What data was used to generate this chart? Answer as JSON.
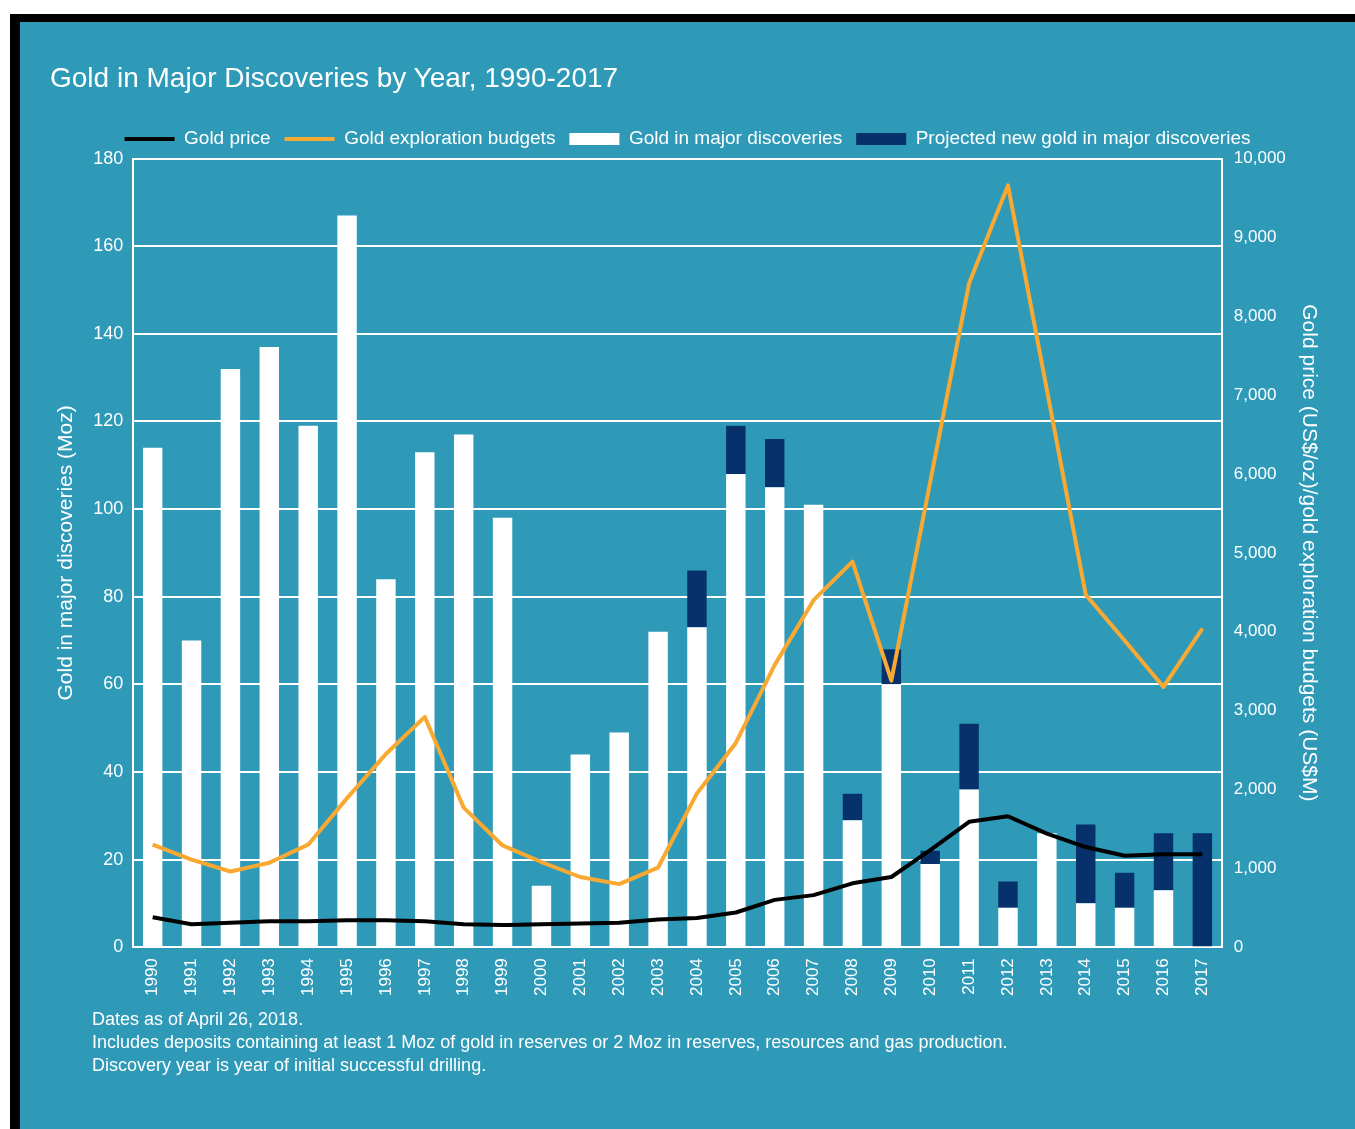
{
  "chart_data": {
    "type": "bar",
    "title": "Gold in Major Discoveries by Year, 1990-2017",
    "ylabel": "Gold in major discoveries (Moz)",
    "y2label": "Gold price (US$/oz)/gold exploration budgets (US$M)",
    "categories": [
      "1990",
      "1991",
      "1992",
      "1993",
      "1994",
      "1995",
      "1996",
      "1997",
      "1998",
      "1999",
      "2000",
      "2001",
      "2002",
      "2003",
      "2004",
      "2005",
      "2006",
      "2007",
      "2008",
      "2009",
      "2010",
      "2011",
      "2012",
      "2013",
      "2014",
      "2015",
      "2016",
      "2017"
    ],
    "stacked": true,
    "series": [
      {
        "name": "Gold in major discoveries",
        "color": "#ffffff",
        "values": [
          114,
          70,
          132,
          137,
          119,
          167,
          84,
          113,
          117,
          98,
          14,
          44,
          49,
          72,
          73,
          108,
          105,
          101,
          29,
          60,
          19,
          36,
          9,
          26,
          10,
          9,
          13,
          0
        ]
      },
      {
        "name": "Projected new gold in major discoveries",
        "color": "#06316a",
        "values": [
          0,
          0,
          0,
          0,
          0,
          0,
          0,
          0,
          0,
          0,
          0,
          0,
          0,
          0,
          13,
          11,
          11,
          0,
          6,
          8,
          3,
          15,
          6,
          0,
          18,
          8,
          13,
          26
        ]
      },
      {
        "name": "Gold price",
        "type": "line",
        "axis": "y2",
        "color": "#000000",
        "values": [
          380,
          290,
          310,
          330,
          330,
          340,
          340,
          330,
          290,
          280,
          290,
          300,
          310,
          350,
          370,
          440,
          600,
          660,
          810,
          890,
          1230,
          1590,
          1660,
          1440,
          1270,
          1160,
          1180,
          1180
        ]
      },
      {
        "name": "Gold exploration budgets",
        "type": "line",
        "axis": "y2",
        "color": "#f9a832",
        "values": [
          1300,
          1110,
          960,
          1070,
          1300,
          1890,
          2450,
          2920,
          1770,
          1290,
          1080,
          890,
          800,
          1010,
          1950,
          2590,
          3580,
          4400,
          4890,
          3380,
          5900,
          8420,
          9660,
          7070,
          4470,
          3890,
          3300,
          4040
        ]
      }
    ],
    "ylim": [
      0,
      180
    ],
    "yticks": [
      0,
      20,
      40,
      60,
      80,
      100,
      120,
      140,
      160,
      180
    ],
    "y2lim": [
      0,
      10000
    ],
    "y2ticks": [
      {
        "value": 0,
        "label": "0"
      },
      {
        "value": 1000,
        "label": "1,000"
      },
      {
        "value": 2000,
        "label": "2,000"
      },
      {
        "value": 3000,
        "label": "3,000"
      },
      {
        "value": 4000,
        "label": "4,000"
      },
      {
        "value": 5000,
        "label": "5,000"
      },
      {
        "value": 6000,
        "label": "6,000"
      },
      {
        "value": 7000,
        "label": "7,000"
      },
      {
        "value": 8000,
        "label": "8,000"
      },
      {
        "value": 9000,
        "label": "9,000"
      },
      {
        "value": 10000,
        "label": "10,000"
      }
    ],
    "grid": "y",
    "legend": "top",
    "marker": "none",
    "line_style": "solid",
    "annotations": [
      "Dates as of April 26, 2018.",
      "Includes deposits containing at least 1 Moz of gold in reserves or 2 Moz in reserves, resources and gas production.",
      "Discovery year is year of initial successful drilling."
    ]
  }
}
